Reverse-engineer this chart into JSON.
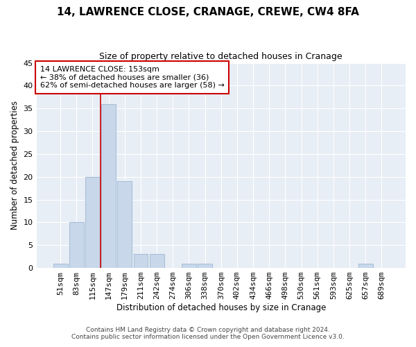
{
  "title": "14, LAWRENCE CLOSE, CRANAGE, CREWE, CW4 8FA",
  "subtitle": "Size of property relative to detached houses in Cranage",
  "xlabel": "Distribution of detached houses by size in Cranage",
  "ylabel": "Number of detached properties",
  "bar_labels": [
    "51sqm",
    "83sqm",
    "115sqm",
    "147sqm",
    "179sqm",
    "211sqm",
    "242sqm",
    "274sqm",
    "306sqm",
    "338sqm",
    "370sqm",
    "402sqm",
    "434sqm",
    "466sqm",
    "498sqm",
    "530sqm",
    "561sqm",
    "593sqm",
    "625sqm",
    "657sqm",
    "689sqm"
  ],
  "bar_values": [
    1,
    10,
    20,
    36,
    19,
    3,
    3,
    0,
    1,
    1,
    0,
    0,
    0,
    0,
    0,
    0,
    0,
    0,
    0,
    1,
    0
  ],
  "bar_color": "#c8d8ea",
  "bar_edge_color": "#a8c0d8",
  "vline_color": "#cc0000",
  "vline_pos": 3,
  "ylim": [
    0,
    45
  ],
  "yticks": [
    0,
    5,
    10,
    15,
    20,
    25,
    30,
    35,
    40,
    45
  ],
  "annotation_title": "14 LAWRENCE CLOSE: 153sqm",
  "annotation_line1": "← 38% of detached houses are smaller (36)",
  "annotation_line2": "62% of semi-detached houses are larger (58) →",
  "annotation_box_color": "#ffffff",
  "annotation_border_color": "#cc0000",
  "footer_line1": "Contains HM Land Registry data © Crown copyright and database right 2024.",
  "footer_line2": "Contains public sector information licensed under the Open Government Licence v3.0.",
  "background_color": "#ffffff",
  "plot_bg_color": "#e8eef5",
  "grid_color": "#ffffff"
}
